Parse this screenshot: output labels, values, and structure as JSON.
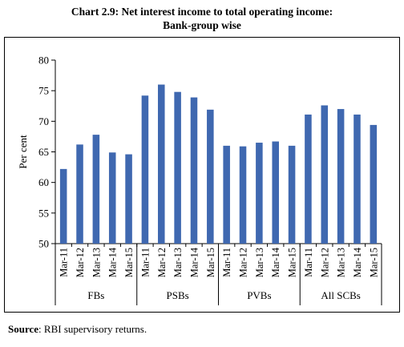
{
  "title_line1": "Chart 2.9: Net interest income to total operating income:",
  "title_line2": "Bank-group wise",
  "source_label": "Source",
  "source_text": ": RBI supervisory returns.",
  "colors": {
    "bar": "#3f68b0",
    "axis": "#000000"
  },
  "chart_data": {
    "type": "bar",
    "title": "Net interest income to total operating income: Bank-group wise",
    "ylabel": "Per cent",
    "ylim": [
      50,
      80
    ],
    "yticks": [
      50,
      55,
      60,
      65,
      70,
      75,
      80
    ],
    "grid": false,
    "groups": [
      {
        "name": "FBs",
        "categories": [
          "Mar-11",
          "Mar-12",
          "Mar-13",
          "Mar-14",
          "Mar-15"
        ],
        "values": [
          62.2,
          66.2,
          67.8,
          64.9,
          64.6
        ]
      },
      {
        "name": "PSBs",
        "categories": [
          "Mar-11",
          "Mar-12",
          "Mar-13",
          "Mar-14",
          "Mar-15"
        ],
        "values": [
          74.2,
          76.0,
          74.8,
          73.9,
          71.9
        ]
      },
      {
        "name": "PVBs",
        "categories": [
          "Mar-11",
          "Mar-12",
          "Mar-13",
          "Mar-14",
          "Mar-15"
        ],
        "values": [
          66.0,
          65.9,
          66.5,
          66.7,
          66.0
        ]
      },
      {
        "name": "All SCBs",
        "categories": [
          "Mar-11",
          "Mar-12",
          "Mar-13",
          "Mar-14",
          "Mar-15"
        ],
        "values": [
          71.1,
          72.6,
          72.0,
          71.1,
          69.4
        ]
      }
    ]
  }
}
